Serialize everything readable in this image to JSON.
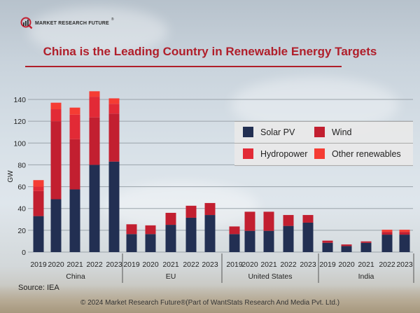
{
  "logo": {
    "text": "MARKET RESEARCH FUTURE",
    "reg": "®"
  },
  "title": "China is the Leading Country in Renewable Energy Targets",
  "source": "Source: IEA",
  "footer": "© 2024 Market Research Future®(Part of WantStats Research And Media Pvt. Ltd.)",
  "colors": {
    "solar": "#222f52",
    "wind": "#c21f30",
    "hydro": "#e22a36",
    "other": "#f53c33",
    "title": "#b01e2a"
  },
  "legend": [
    {
      "label": "Solar PV",
      "key": "solar"
    },
    {
      "label": "Wind",
      "key": "wind"
    },
    {
      "label": "Hydropower",
      "key": "hydro"
    },
    {
      "label": "Other renewables",
      "key": "other"
    }
  ],
  "chart_data": {
    "type": "bar",
    "stacked": true,
    "title": "China is the Leading Country in Renewable Energy Targets",
    "xlabel": "",
    "ylabel": "GW",
    "ylim": [
      0,
      140
    ],
    "yticks": [
      0,
      20,
      40,
      60,
      80,
      100,
      120,
      140
    ],
    "grid": true,
    "legend_position": "right",
    "groups": [
      "China",
      "EU",
      "United States",
      "India"
    ],
    "years": [
      "2019",
      "2020",
      "2021",
      "2022",
      "2023"
    ],
    "categories": [
      "China 2019",
      "China 2020",
      "China 2021",
      "China 2022",
      "China 2023",
      "EU 2019",
      "EU 2020",
      "EU 2021",
      "EU 2022",
      "EU 2023",
      "United States 2019",
      "United States 2020",
      "United States 2021",
      "United States 2022",
      "United States 2023",
      "India 2019",
      "India 2020",
      "India 2021",
      "India 2022",
      "India 2023"
    ],
    "series": [
      {
        "name": "Solar PV",
        "key": "solar",
        "values": [
          33,
          48.5,
          57.5,
          80,
          83,
          16.5,
          16.5,
          25,
          31.5,
          34,
          16.5,
          19.5,
          19.5,
          24,
          27,
          8.5,
          5.5,
          8.5,
          16,
          16
        ]
      },
      {
        "name": "Wind",
        "key": "wind",
        "values": [
          23,
          71.5,
          46,
          43.5,
          44,
          9,
          8,
          11,
          11,
          11,
          7,
          17.5,
          17.5,
          10,
          7,
          2,
          1.5,
          1.3,
          2.5,
          2.5
        ]
      },
      {
        "name": "Hydropower",
        "key": "hydro",
        "values": [
          4,
          11,
          22.5,
          19,
          9,
          0,
          0,
          0,
          0,
          0,
          0,
          0,
          0,
          0,
          0,
          0,
          0,
          0,
          0,
          0
        ]
      },
      {
        "name": "Other renewables",
        "key": "other",
        "values": [
          6,
          6,
          6.5,
          5,
          5,
          0,
          0,
          0,
          0,
          0,
          0,
          0,
          0,
          0,
          0,
          0,
          0,
          0,
          2,
          2
        ]
      }
    ]
  }
}
